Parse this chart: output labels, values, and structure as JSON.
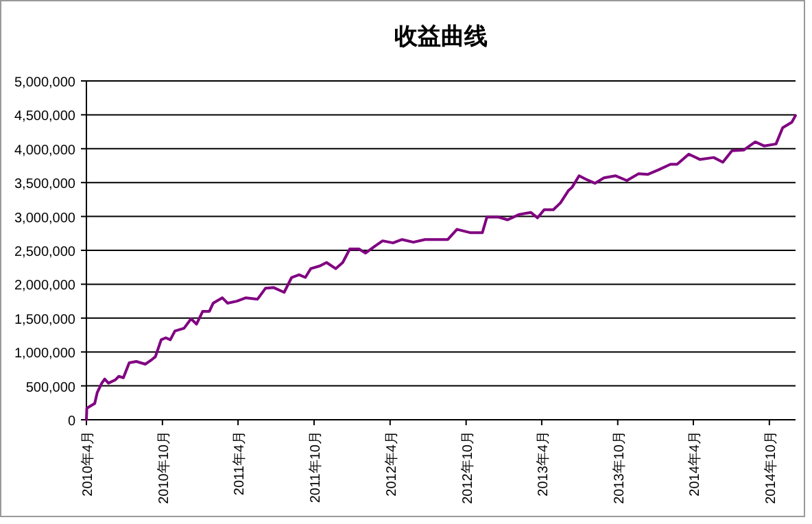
{
  "chart_data": {
    "type": "line",
    "title": "收益曲线",
    "x": [
      "2010-04-01",
      "2010-04-02",
      "2010-04-10",
      "2010-04-21",
      "2010-04-27",
      "2010-05-08",
      "2010-05-15",
      "2010-05-24",
      "2010-06-10",
      "2010-06-18",
      "2010-06-29",
      "2010-07-13",
      "2010-07-30",
      "2010-08-21",
      "2010-09-06",
      "2010-09-14",
      "2010-09-28",
      "2010-10-09",
      "2010-10-20",
      "2010-10-31",
      "2010-11-22",
      "2010-12-09",
      "2010-12-22",
      "2011-01-06",
      "2011-01-22",
      "2011-01-31",
      "2011-02-22",
      "2011-03-07",
      "2011-03-29",
      "2011-04-20",
      "2011-05-18",
      "2011-06-06",
      "2011-06-26",
      "2011-07-21",
      "2011-08-08",
      "2011-08-26",
      "2011-09-10",
      "2011-09-23",
      "2011-10-15",
      "2011-10-31",
      "2011-11-22",
      "2011-12-09",
      "2011-12-26",
      "2012-01-17",
      "2012-02-02",
      "2012-02-24",
      "2012-03-14",
      "2012-04-08",
      "2012-04-30",
      "2012-05-27",
      "2012-06-24",
      "2012-07-22",
      "2012-08-18",
      "2012-09-09",
      "2012-10-12",
      "2012-11-09",
      "2012-11-20",
      "2012-12-18",
      "2013-01-09",
      "2013-02-06",
      "2013-03-06",
      "2013-03-22",
      "2013-04-07",
      "2013-04-29",
      "2013-05-16",
      "2013-06-04",
      "2013-06-13",
      "2013-06-30",
      "2013-07-16",
      "2013-08-07",
      "2013-08-29",
      "2013-09-26",
      "2013-10-23",
      "2013-11-20",
      "2013-12-12",
      "2014-01-08",
      "2014-02-05",
      "2014-02-21",
      "2014-03-21",
      "2014-04-17",
      "2014-05-20",
      "2014-06-11",
      "2014-07-03",
      "2014-07-31",
      "2014-08-28",
      "2014-09-19",
      "2014-10-17",
      "2014-11-02",
      "2014-11-24",
      "2014-12-03"
    ],
    "series": [
      {
        "color": "#800080",
        "values": [
          0,
          170000,
          200000,
          240000,
          400000,
          540000,
          600000,
          540000,
          590000,
          640000,
          620000,
          840000,
          860000,
          820000,
          890000,
          930000,
          1180000,
          1210000,
          1180000,
          1310000,
          1350000,
          1490000,
          1410000,
          1600000,
          1600000,
          1720000,
          1800000,
          1720000,
          1750000,
          1800000,
          1780000,
          1940000,
          1950000,
          1880000,
          2100000,
          2140000,
          2100000,
          2230000,
          2270000,
          2320000,
          2230000,
          2320000,
          2520000,
          2520000,
          2460000,
          2560000,
          2640000,
          2610000,
          2660000,
          2620000,
          2660000,
          2660000,
          2660000,
          2810000,
          2760000,
          2760000,
          2990000,
          2990000,
          2950000,
          3030000,
          3060000,
          2980000,
          3100000,
          3100000,
          3200000,
          3380000,
          3430000,
          3600000,
          3550000,
          3490000,
          3570000,
          3600000,
          3530000,
          3630000,
          3620000,
          3690000,
          3770000,
          3770000,
          3920000,
          3840000,
          3870000,
          3800000,
          3970000,
          3980000,
          4100000,
          4040000,
          4070000,
          4310000,
          4390000,
          4490000
        ]
      }
    ],
    "xlim": [
      "2010-04-01",
      "2014-12-03"
    ],
    "xticks": [
      {
        "value": "2010-04",
        "label": "2010年4月"
      },
      {
        "value": "2010-10",
        "label": "2010年10月"
      },
      {
        "value": "2011-04",
        "label": "2011年4月"
      },
      {
        "value": "2011-10",
        "label": "2011年10月"
      },
      {
        "value": "2012-04",
        "label": "2012年4月"
      },
      {
        "value": "2012-10",
        "label": "2012年10月"
      },
      {
        "value": "2013-04",
        "label": "2013年4月"
      },
      {
        "value": "2013-10",
        "label": "2013年10月"
      },
      {
        "value": "2014-04",
        "label": "2014年4月"
      },
      {
        "value": "2014-10",
        "label": "2014年10月"
      }
    ],
    "ylim": [
      0,
      5000000
    ],
    "yticks": [
      0,
      {
        "value": 500000,
        "label": "500,000"
      },
      {
        "value": 1000000,
        "label": "1,000,000"
      },
      {
        "value": 1500000,
        "label": "1,500,000"
      },
      {
        "value": 2000000,
        "label": "2,000,000"
      },
      {
        "value": 2500000,
        "label": "2,500,000"
      },
      {
        "value": 3000000,
        "label": "3,000,000"
      },
      {
        "value": 3500000,
        "label": "3,500,000"
      },
      {
        "value": 4000000,
        "label": "4,000,000"
      },
      {
        "value": 4500000,
        "label": "4,500,000"
      },
      {
        "value": 5000000,
        "label": "5,000,000"
      }
    ],
    "grid": "y",
    "marker": "none",
    "line_style": "solid"
  }
}
